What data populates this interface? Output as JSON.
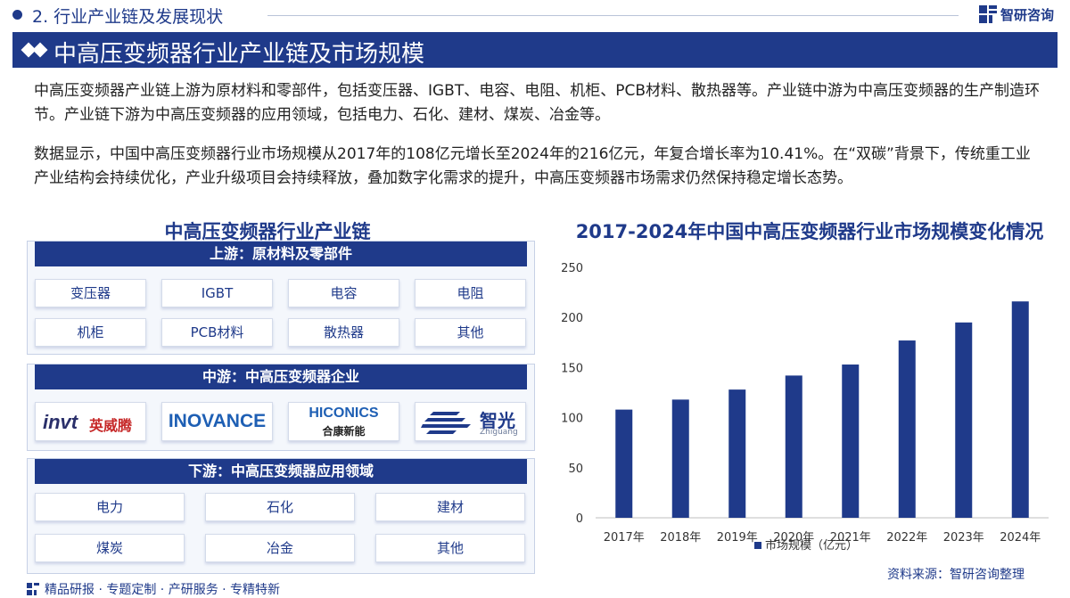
{
  "header": {
    "section": "2. 行业产业链及发展现状",
    "logo": "智研咨询",
    "title": "中高压变频器行业产业链及市场规模"
  },
  "paragraphs": [
    "中高压变频器产业链上游为原材料和零部件，包括变压器、IGBT、电容、电阻、机柜、PCB材料、散热器等。产业链中游为中高压变频器的生产制造环节。产业链下游为中高压变频器的应用领域，包括电力、石化、建材、煤炭、冶金等。",
    "数据显示，中国中高压变频器行业市场规模从2017年的108亿元增长至2024年的216亿元，年复合增长率为10.41%。在“双碳”背景下，传统重工业产业结构会持续优化，产业升级项目会持续释放，叠加数字化需求的提升，中高压变频器市场需求仍然保持稳定增长态势。"
  ],
  "chain": {
    "title": "中高压变频器行业产业链",
    "upstream": {
      "label": "上游：原材料及零部件",
      "items": [
        "变压器",
        "IGBT",
        "电容",
        "电阻",
        "机柜",
        "PCB材料",
        "散热器",
        "其他"
      ]
    },
    "midstream": {
      "label": "中游：中高压变频器企业",
      "brands": [
        {
          "logo": "invt",
          "name": "英威腾"
        },
        {
          "logo": "INOVANCE"
        },
        {
          "logo": "HICONICS",
          "name": "合康新能"
        },
        {
          "name": "智光",
          "sub": "Zhiguang"
        }
      ]
    },
    "downstream": {
      "label": "下游：中高压变频器应用领域",
      "items": [
        "电力",
        "石化",
        "建材",
        "煤炭",
        "冶金",
        "其他"
      ]
    }
  },
  "chart_data": {
    "type": "bar",
    "title": "2017-2024年中国中高压变频器行业市场规模变化情况",
    "categories": [
      "2017年",
      "2018年",
      "2019年",
      "2020年",
      "2021年",
      "2022年",
      "2023年",
      "2024年"
    ],
    "series": [
      {
        "name": "市场规模（亿元）",
        "values": [
          108,
          118,
          128,
          142,
          153,
          177,
          195,
          216
        ],
        "color": "#1f3a8a"
      }
    ],
    "ylim": [
      0,
      250
    ],
    "yticks": [
      0,
      50,
      100,
      150,
      200,
      250
    ],
    "grid": false,
    "legend": "bottom"
  },
  "source": "资料来源：智研咨询整理",
  "footer": "精品研报 · 专题定制 · 产研服务 · 专精特新",
  "colors": {
    "brand": "#1f3a8a",
    "panel": "#f4f7fc"
  }
}
